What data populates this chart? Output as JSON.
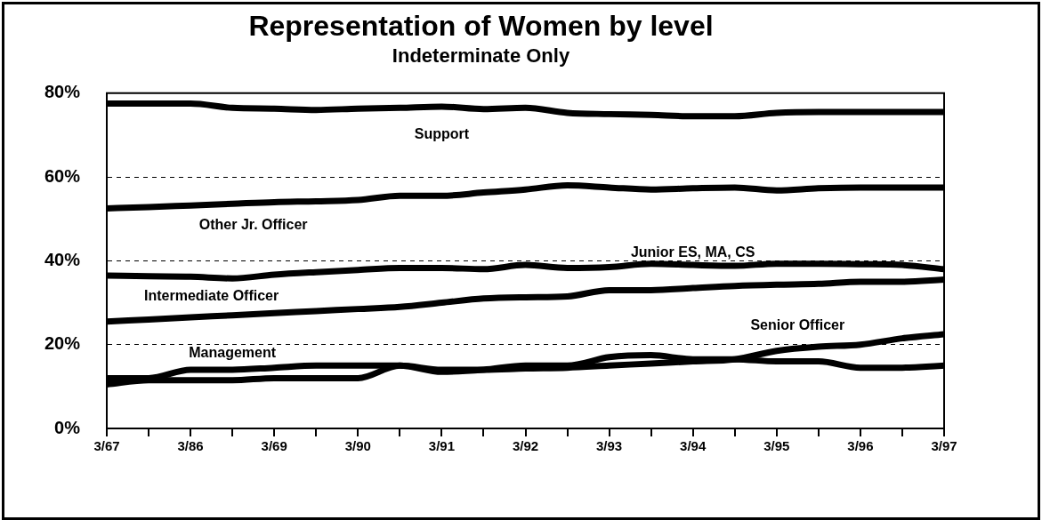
{
  "chart_data": {
    "type": "line",
    "title": "Representation of Women by level",
    "subtitle": "Indeterminate Only",
    "categories": [
      "3/67",
      null,
      "3/86",
      null,
      "3/69",
      null,
      "3/90",
      null,
      "3/91",
      null,
      "3/92",
      null,
      "3/93",
      null,
      "3/94",
      null,
      "3/95",
      null,
      "3/96",
      null,
      "3/97"
    ],
    "series": [
      {
        "name": "Support",
        "color": "#000000",
        "values": [
          77.5,
          77.5,
          77.5,
          76.5,
          76.3,
          76,
          76.3,
          76.5,
          76.8,
          76.2,
          76.5,
          75.3,
          75,
          74.8,
          74.5,
          74.5,
          75.3,
          75.5,
          75.5,
          75.5,
          75.5
        ]
      },
      {
        "name": "Other Jr. Officer",
        "color": "#000000",
        "values": [
          52.5,
          52.8,
          53.2,
          53.6,
          54,
          54.2,
          54.5,
          55.5,
          55.5,
          56.3,
          57,
          58,
          57.5,
          57,
          57.3,
          57.5,
          56.8,
          57.3,
          57.5,
          57.5,
          57.5
        ]
      },
      {
        "name": "Junior ES, MA, CS",
        "color": "#000000",
        "values": [
          36.5,
          36.3,
          36.2,
          35.8,
          36.7,
          37.3,
          37.8,
          38.3,
          38.3,
          38,
          39,
          38.3,
          38.5,
          39.3,
          39,
          38.8,
          39.3,
          39.3,
          39.2,
          39,
          38
        ]
      },
      {
        "name": "Intermediate Officer",
        "color": "#000000",
        "values": [
          25.5,
          26,
          26.5,
          27,
          27.5,
          28,
          28.5,
          29,
          30,
          31,
          31.3,
          31.5,
          33,
          33,
          33.5,
          34,
          34.3,
          34.5,
          35,
          35,
          35.5
        ]
      },
      {
        "name": "Senior Officer",
        "color": "#000000",
        "values": [
          10.5,
          11.5,
          11.5,
          11.5,
          12,
          12,
          12,
          15,
          14,
          14,
          14.3,
          14.5,
          15,
          15.5,
          16,
          16.5,
          18.5,
          19.5,
          20,
          21.5,
          22.5
        ]
      },
      {
        "name": "Management",
        "color": "#000000",
        "values": [
          12,
          12,
          14,
          14,
          14.5,
          15,
          15,
          15,
          13.5,
          14,
          15,
          15,
          17,
          17.5,
          16.5,
          16.5,
          16,
          16,
          14.5,
          14.5,
          15
        ]
      }
    ],
    "ylim": [
      0,
      80
    ],
    "yticks": [
      {
        "value": 0,
        "label": "0%"
      },
      {
        "value": 20,
        "label": "20%"
      },
      {
        "value": 40,
        "label": "40%"
      },
      {
        "value": 60,
        "label": "60%"
      },
      {
        "value": 80,
        "label": "80%"
      }
    ],
    "grid": "y",
    "legend": false,
    "marker": "none",
    "line_style": "solid"
  }
}
